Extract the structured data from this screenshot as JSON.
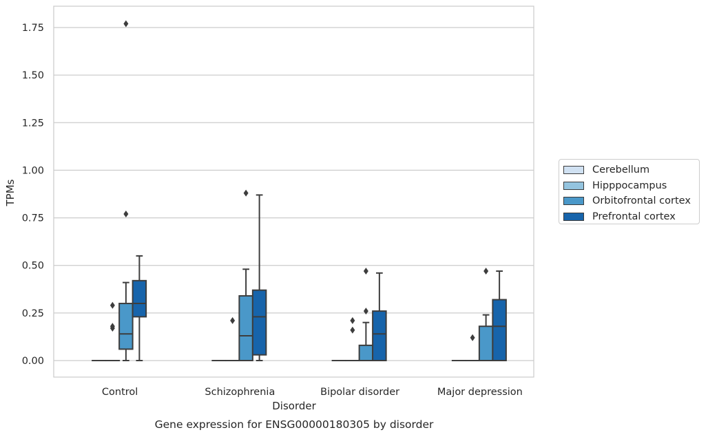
{
  "chart_data": {
    "type": "box",
    "title": "Gene expression for ENSG00000180305 by disorder",
    "xlabel": "Disorder",
    "ylabel": "TPMs",
    "ylim": [
      -0.085,
      1.86
    ],
    "yticks": [
      "0.00",
      "0.25",
      "0.50",
      "0.75",
      "1.00",
      "1.25",
      "1.50",
      "1.75"
    ],
    "grid": true,
    "legend_position": "right",
    "categories": [
      "Control",
      "Schizophrenia",
      "Bipolar disorder",
      "Major depression"
    ],
    "series": [
      {
        "name": "Cerebellum",
        "color": "#d0e1f2",
        "boxes": [
          {
            "q1": 0,
            "median": 0,
            "q3": 0,
            "whisker_low": 0,
            "whisker_high": 0,
            "outliers": []
          },
          {
            "q1": 0,
            "median": 0,
            "q3": 0,
            "whisker_low": 0,
            "whisker_high": 0,
            "outliers": []
          },
          {
            "q1": 0,
            "median": 0,
            "q3": 0,
            "whisker_low": 0,
            "whisker_high": 0,
            "outliers": []
          },
          {
            "q1": 0,
            "median": 0,
            "q3": 0,
            "whisker_low": 0,
            "whisker_high": 0,
            "outliers": []
          }
        ]
      },
      {
        "name": "Hipppocampus",
        "color": "#94c4df",
        "boxes": [
          {
            "q1": 0,
            "median": 0,
            "q3": 0,
            "whisker_low": 0,
            "whisker_high": 0,
            "outliers": [
              0.17,
              0.18,
              0.29
            ]
          },
          {
            "q1": 0,
            "median": 0,
            "q3": 0,
            "whisker_low": 0,
            "whisker_high": 0,
            "outliers": [
              0.21
            ]
          },
          {
            "q1": 0,
            "median": 0,
            "q3": 0,
            "whisker_low": 0,
            "whisker_high": 0,
            "outliers": [
              0.16,
              0.21
            ]
          },
          {
            "q1": 0,
            "median": 0,
            "q3": 0,
            "whisker_low": 0,
            "whisker_high": 0,
            "outliers": [
              0.12
            ]
          }
        ]
      },
      {
        "name": "Orbitofrontal cortex",
        "color": "#4a98c9",
        "boxes": [
          {
            "q1": 0.06,
            "median": 0.14,
            "q3": 0.3,
            "whisker_low": 0,
            "whisker_high": 0.41,
            "outliers": [
              0.77,
              1.77
            ]
          },
          {
            "q1": 0,
            "median": 0.13,
            "q3": 0.34,
            "whisker_low": 0,
            "whisker_high": 0.48,
            "outliers": [
              0.88
            ]
          },
          {
            "q1": 0,
            "median": 0,
            "q3": 0.08,
            "whisker_low": 0,
            "whisker_high": 0.2,
            "outliers": [
              0.26,
              0.47
            ]
          },
          {
            "q1": 0,
            "median": 0,
            "q3": 0.18,
            "whisker_low": 0,
            "whisker_high": 0.24,
            "outliers": [
              0.47
            ]
          }
        ]
      },
      {
        "name": "Prefrontal cortex",
        "color": "#1764ab",
        "boxes": [
          {
            "q1": 0.23,
            "median": 0.3,
            "q3": 0.42,
            "whisker_low": 0,
            "whisker_high": 0.55,
            "outliers": []
          },
          {
            "q1": 0.03,
            "median": 0.23,
            "q3": 0.37,
            "whisker_low": 0,
            "whisker_high": 0.87,
            "outliers": []
          },
          {
            "q1": 0,
            "median": 0.14,
            "q3": 0.26,
            "whisker_low": 0,
            "whisker_high": 0.46,
            "outliers": []
          },
          {
            "q1": 0,
            "median": 0.18,
            "q3": 0.32,
            "whisker_low": 0,
            "whisker_high": 0.47,
            "outliers": []
          }
        ]
      }
    ]
  }
}
